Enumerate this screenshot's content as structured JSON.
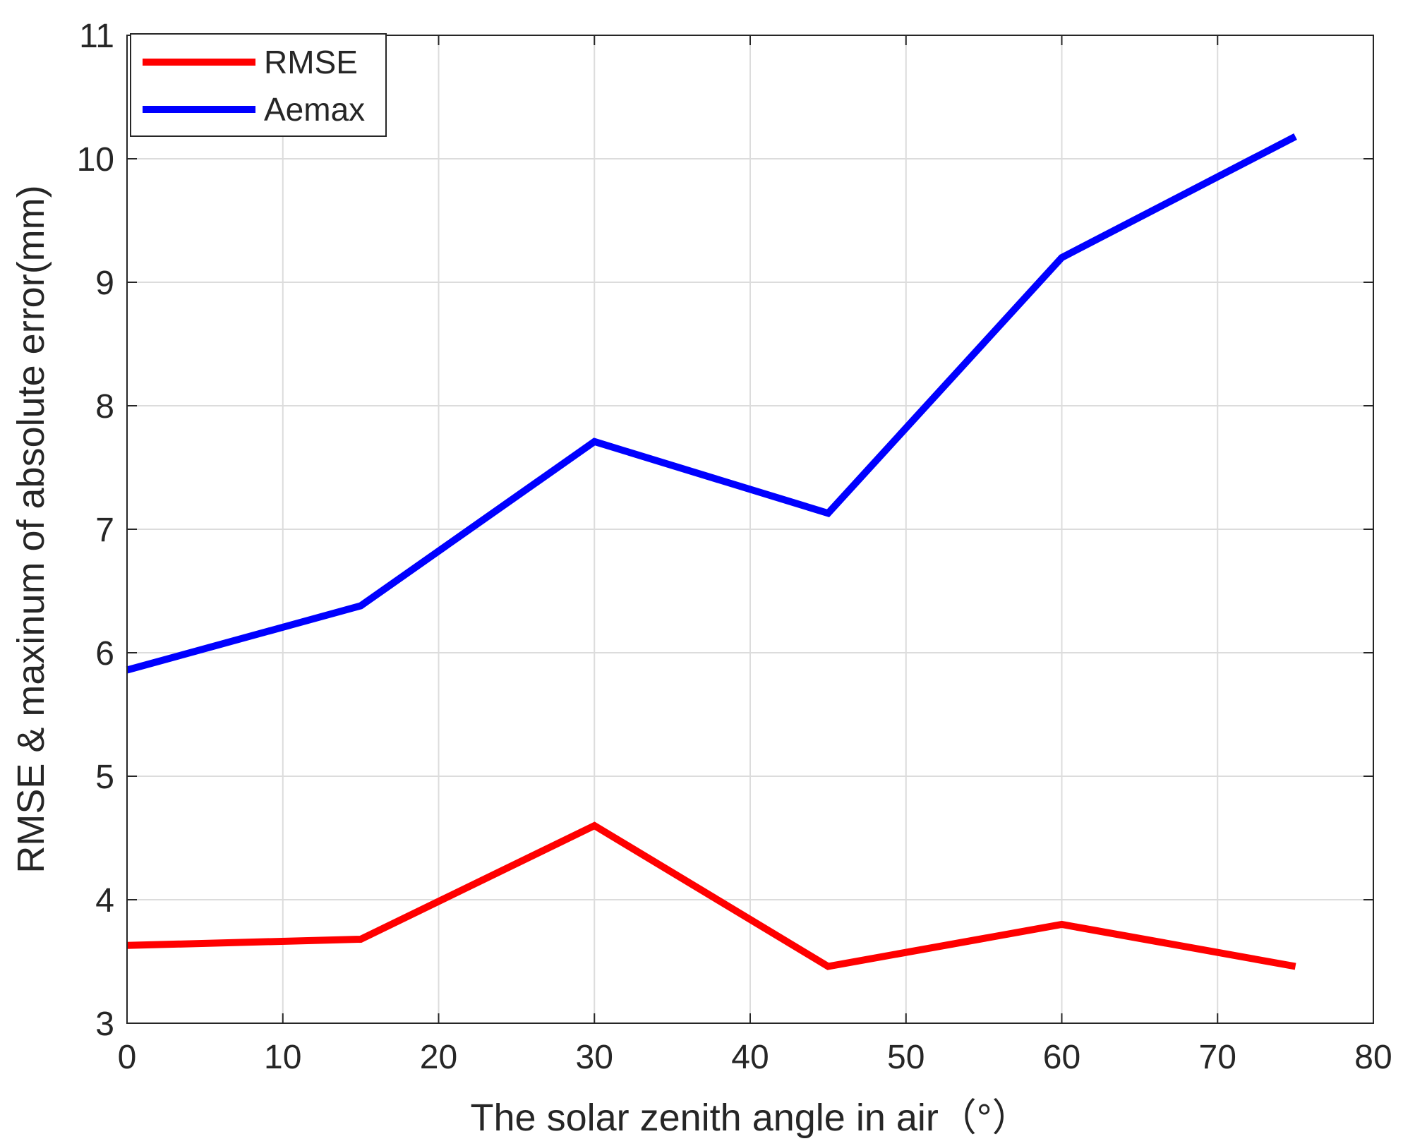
{
  "chart_data": {
    "type": "line",
    "xlabel": "The solar zenith angle in air（°）",
    "ylabel": "RMSE & maxinum of absolute error(mm)",
    "xlim": [
      0,
      80
    ],
    "ylim": [
      3,
      11
    ],
    "xticks": [
      0,
      10,
      20,
      30,
      40,
      50,
      60,
      70,
      80
    ],
    "yticks": [
      3,
      4,
      5,
      6,
      7,
      8,
      9,
      10,
      11
    ],
    "x": [
      0,
      15,
      30,
      45,
      60,
      75
    ],
    "grid": true,
    "legend_position": "top-left",
    "series": [
      {
        "name": "RMSE",
        "color": "#ff0000",
        "values": [
          3.63,
          3.68,
          4.6,
          3.46,
          3.8,
          3.46
        ]
      },
      {
        "name": "Aemax",
        "color": "#0000ff",
        "values": [
          5.86,
          6.38,
          7.71,
          7.13,
          9.2,
          10.18
        ]
      }
    ]
  }
}
